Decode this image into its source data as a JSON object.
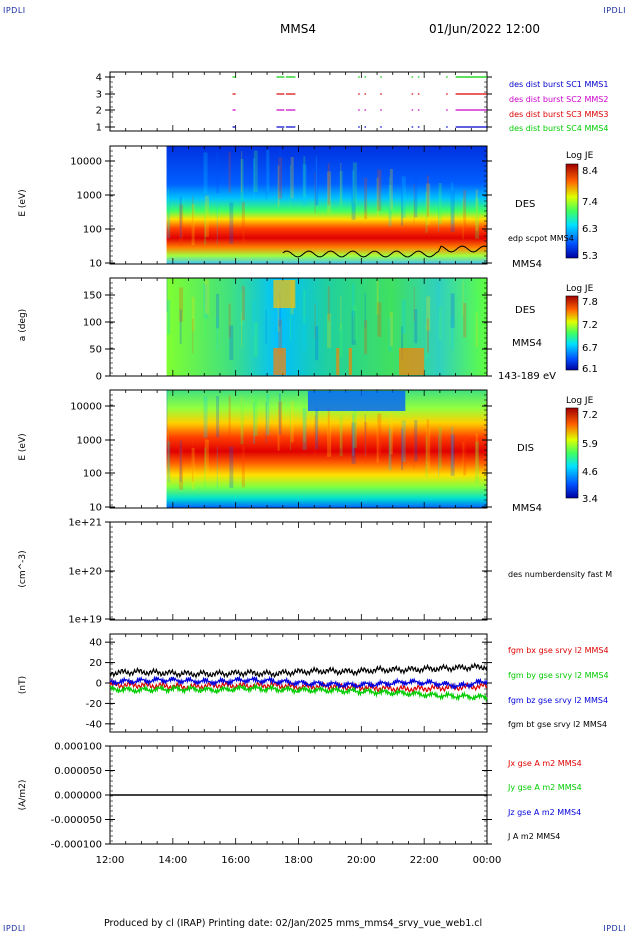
{
  "header": {
    "left_tag": "IPDLI",
    "right_tag": "IPDLI",
    "mission": "MMS4",
    "datetime": "01/Jun/2022 12:00"
  },
  "footer": {
    "left_tag": "IPDLI",
    "right_tag": "IPDLI",
    "text": "Produced by cl (IRAP)   Printing date: 02/Jan/2025   mms_mms4_srvy_vue_web1.cl"
  },
  "colors": {
    "mms1": "#0000cc",
    "mms2": "#cc00cc",
    "mms3": "#dd0000",
    "mms4": "#00cc00",
    "bx": "#dd0000",
    "by": "#00cc00",
    "bz": "#0000dd",
    "bt": "#000000"
  },
  "chart_data": [
    {
      "type": "timeline",
      "name": "burst-availability",
      "yticks": [
        "1",
        "2",
        "3",
        "4"
      ],
      "legend": [
        {
          "label": "des dist burst SC1 MMS1",
          "color": "#0000cc"
        },
        {
          "label": "des dist burst SC2 MMS2",
          "color": "#cc00cc"
        },
        {
          "label": "des dist burst SC3 MMS3",
          "color": "#dd0000"
        },
        {
          "label": "des dist burst SC4 MMS4",
          "color": "#00cc00"
        }
      ],
      "segments_hours": [
        [
          15.9,
          16.0
        ],
        [
          17.3,
          17.55
        ],
        [
          17.6,
          17.9
        ],
        [
          19.9,
          19.95
        ],
        [
          20.1,
          20.15
        ],
        [
          20.6,
          20.65
        ],
        [
          21.6,
          21.65
        ],
        [
          21.8,
          21.85
        ],
        [
          22.7,
          22.75
        ],
        [
          23.0,
          24.0
        ]
      ]
    },
    {
      "type": "heatmap",
      "name": "des-energy",
      "ylabel": "E (eV)",
      "yscale": "log",
      "ylim": [
        10,
        30000
      ],
      "yticks": [
        "10",
        "100",
        "1000",
        "10000"
      ],
      "colorbar_title": "Log JE",
      "colorbar_ticks": [
        "8.4",
        "7.4",
        "6.3",
        "5.3"
      ],
      "right_labels": [
        "DES",
        "edp scpot MMS4",
        "MMS4"
      ],
      "data_start_hour": 13.8
    },
    {
      "type": "heatmap",
      "name": "des-pitch-angle",
      "ylabel": "a (deg)",
      "ylim": [
        0,
        180
      ],
      "yticks": [
        "0",
        "50",
        "100",
        "150"
      ],
      "colorbar_title": "Log JE",
      "colorbar_ticks": [
        "7.8",
        "7.2",
        "6.7",
        "6.1"
      ],
      "right_labels": [
        "DES",
        "MMS4",
        "143-189 eV"
      ],
      "data_start_hour": 13.8
    },
    {
      "type": "heatmap",
      "name": "dis-energy",
      "ylabel": "E (eV)",
      "yscale": "log",
      "ylim": [
        10,
        30000
      ],
      "yticks": [
        "10",
        "100",
        "1000",
        "10000"
      ],
      "colorbar_title": "Log JE",
      "colorbar_ticks": [
        "7.2",
        "5.9",
        "4.6",
        "3.4"
      ],
      "right_labels": [
        "DIS",
        "MMS4"
      ],
      "data_start_hour": 13.8
    },
    {
      "type": "line",
      "name": "density",
      "ylabel": "(cm^-3)",
      "yscale": "log",
      "yticks": [
        "1e+19",
        "1e+20",
        "1e+21"
      ],
      "legend": [
        {
          "label": "des numberdensity fast M",
          "color": "#000000"
        }
      ]
    },
    {
      "type": "line",
      "name": "magnetic-field",
      "ylabel": "(nT)",
      "ylim": [
        -48,
        48
      ],
      "yticks": [
        "-40",
        "-20",
        "0",
        "20",
        "40"
      ],
      "series": [
        {
          "name": "fgm bx gse srvy l2 MMS4",
          "color": "#dd0000",
          "values": [
            -2,
            -2,
            -3,
            -4,
            -2,
            -3,
            -2,
            -4,
            -3,
            -4,
            -5,
            -6,
            -5,
            -4,
            -3
          ]
        },
        {
          "name": "fgm by gse srvy l2 MMS4",
          "color": "#00cc00",
          "values": [
            -6,
            -7,
            -6,
            -6,
            -7,
            -5,
            -6,
            -7,
            -7,
            -8,
            -9,
            -10,
            -12,
            -13,
            -14
          ]
        },
        {
          "name": "fgm bz gse srvy l2 MMS4",
          "color": "#0000dd",
          "values": [
            1,
            2,
            3,
            2,
            1,
            3,
            2,
            0,
            -1,
            -2,
            -1,
            1,
            0,
            -3,
            2
          ]
        },
        {
          "name": "fgm bt gse srvy l2 MMS4",
          "color": "#000000",
          "values": [
            10,
            11,
            10,
            9,
            9,
            10,
            9,
            11,
            12,
            11,
            13,
            13,
            14,
            15,
            16
          ]
        }
      ]
    },
    {
      "type": "line",
      "name": "current-density",
      "ylabel": "(A/m2)",
      "ylim": [
        -0.0001,
        0.0001
      ],
      "yticks": [
        "-0.000100",
        "-0.000050",
        "0.000000",
        "0.000050",
        "0.000100"
      ],
      "series": [
        {
          "name": "Jx gse A m2 MMS4",
          "color": "#dd0000"
        },
        {
          "name": "Jy gse A m2 MMS4",
          "color": "#00cc00"
        },
        {
          "name": "Jz gse A m2 MMS4",
          "color": "#0000dd"
        },
        {
          "name": "J A m2 MMS4",
          "color": "#000000"
        }
      ]
    }
  ],
  "xaxis": {
    "range_hours": [
      12,
      24
    ],
    "tick_labels": [
      "12:00",
      "14:00",
      "16:00",
      "18:00",
      "20:00",
      "22:00",
      "00:00"
    ]
  }
}
